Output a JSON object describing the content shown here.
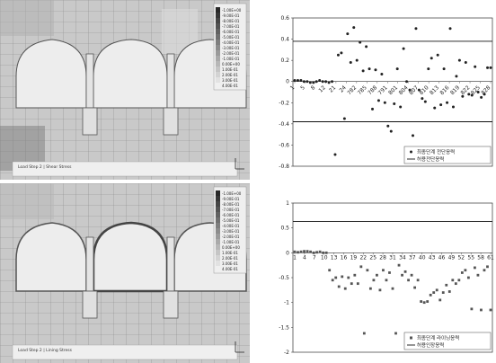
{
  "figures": [
    {
      "fem_colorbar_labels": [
        "-1.00E+00",
        "-9.00E-01",
        "-8.00E-01",
        "-7.00E-01",
        "-6.00E-01",
        "-5.00E-01",
        "-4.00E-01",
        "-3.00E-01",
        "-2.00E-01",
        "-1.00E-01",
        "0.00E+00",
        "1.00E-01",
        "2.00E-01",
        "3.00E-01",
        "4.00E-01"
      ],
      "fem_footer": "Load Step 2 | Shear Stress"
    },
    {
      "fem_colorbar_labels": [
        "-1.00E+00",
        "-9.00E-01",
        "-8.00E-01",
        "-7.00E-01",
        "-6.00E-01",
        "-5.00E-01",
        "-4.00E-01",
        "-3.00E-01",
        "-2.00E-01",
        "-1.00E-01",
        "0.00E+00",
        "1.00E-01",
        "2.00E-01",
        "3.00E-01",
        "4.00E-01"
      ],
      "fem_footer": "Load Step 2 | Lining Stress"
    }
  ],
  "chart_data": [
    {
      "type": "scatter",
      "title": "",
      "ylim": [
        -0.8,
        0.6
      ],
      "yticks": [
        0.6,
        0.4,
        0.2,
        0,
        -0.2,
        -0.4,
        -0.6,
        -0.8
      ],
      "xtick_labels": [
        "1",
        "5",
        "8",
        "12",
        "21",
        "24",
        "782",
        "785",
        "788",
        "791",
        "801",
        "804",
        "807",
        "810",
        "813",
        "816",
        "819",
        "822",
        "825",
        "828"
      ],
      "hlines": [
        0.38,
        -0.38
      ],
      "series": [
        {
          "name": "최종단계 전단응력",
          "marker": "circle",
          "values": [
            0.01,
            0.01,
            0.01,
            0.0,
            0.0,
            -0.01,
            -0.01,
            0.0,
            0.01,
            0.0,
            0.0,
            -0.01,
            0.0,
            -0.69,
            0.25,
            0.27,
            -0.35,
            0.45,
            0.18,
            0.51,
            0.2,
            0.37,
            0.1,
            0.33,
            0.12,
            -0.26,
            0.11,
            -0.18,
            0.07,
            -0.2,
            -0.42,
            -0.47,
            -0.21,
            0.12,
            -0.24,
            0.31,
            0.0,
            -0.08,
            -0.51,
            0.5,
            -0.08,
            -0.16,
            -0.19,
            0.12,
            0.22,
            -0.25,
            0.25,
            -0.22,
            0.12,
            -0.2,
            0.5,
            -0.24,
            0.05,
            0.2,
            -0.14,
            0.18,
            -0.12,
            -0.13,
            0.14,
            -0.1,
            -0.15,
            -0.12,
            0.13,
            0.13
          ]
        }
      ],
      "legend": [
        "최종단계 전단응력",
        "허용전단응력"
      ]
    },
    {
      "type": "scatter",
      "title": "",
      "ylim": [
        -2,
        1
      ],
      "yticks": [
        1,
        0.5,
        0,
        -0.5,
        -1,
        -1.5,
        -2
      ],
      "xtick_labels": [
        "1",
        "4",
        "7",
        "10",
        "13",
        "16",
        "19",
        "22",
        "25",
        "28",
        "31",
        "34",
        "37",
        "40",
        "43",
        "46",
        "49",
        "52",
        "55",
        "58",
        "61"
      ],
      "hlines": [
        0.63
      ],
      "series": [
        {
          "name": "최종단계 라이닝응력",
          "marker": "square",
          "values": [
            0.02,
            0.01,
            0.02,
            0.03,
            0.03,
            0.02,
            0.0,
            0.01,
            0.02,
            0.0,
            0.0,
            -0.35,
            -0.55,
            -0.5,
            -0.68,
            -0.48,
            -0.72,
            -0.5,
            -0.62,
            -0.45,
            -0.62,
            -0.28,
            -1.62,
            -0.35,
            -0.72,
            -0.55,
            -0.45,
            -0.75,
            -0.35,
            -0.55,
            -0.4,
            -0.72,
            -1.62,
            -0.25,
            -0.45,
            -0.38,
            -0.55,
            -0.45,
            -0.7,
            -0.55,
            -0.98,
            -1.0,
            -0.98,
            -0.85,
            -0.8,
            -0.75,
            -0.95,
            -0.8,
            -0.65,
            -0.78,
            -0.55,
            -0.62,
            -0.55,
            -0.4,
            -0.35,
            -0.5,
            -1.13,
            -0.3,
            -0.45,
            -1.15,
            -0.35,
            -0.28,
            -1.15
          ]
        }
      ],
      "legend": [
        "최종단계 라이닝응력",
        "허용인장응력"
      ]
    }
  ]
}
